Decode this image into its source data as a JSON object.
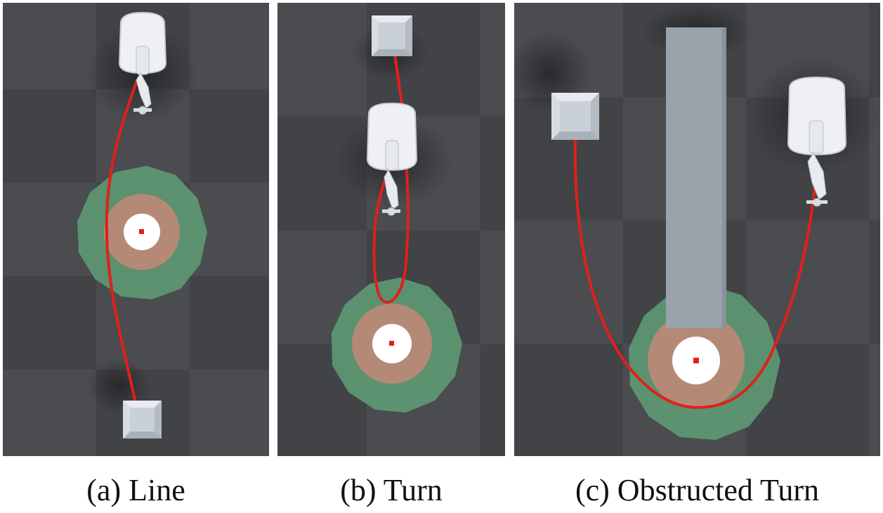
{
  "figure": {
    "panels": [
      {
        "id": "a",
        "caption": "(a) Line"
      },
      {
        "id": "b",
        "caption": "(b) Turn"
      },
      {
        "id": "c",
        "caption": "(c) Obstructed Turn"
      }
    ]
  },
  "colors": {
    "floor_dark": "#3f4144",
    "floor_light": "#4a4c4f",
    "trajectory": "#e0201a",
    "outer_zone": "#5e9a72",
    "inner_zone": "#b48a77",
    "target_center": "#ffffff",
    "target_dot": "#e0201a",
    "box": "#c9d0d8",
    "wall": "#9aa2ab",
    "robot": "#eef0f3"
  }
}
